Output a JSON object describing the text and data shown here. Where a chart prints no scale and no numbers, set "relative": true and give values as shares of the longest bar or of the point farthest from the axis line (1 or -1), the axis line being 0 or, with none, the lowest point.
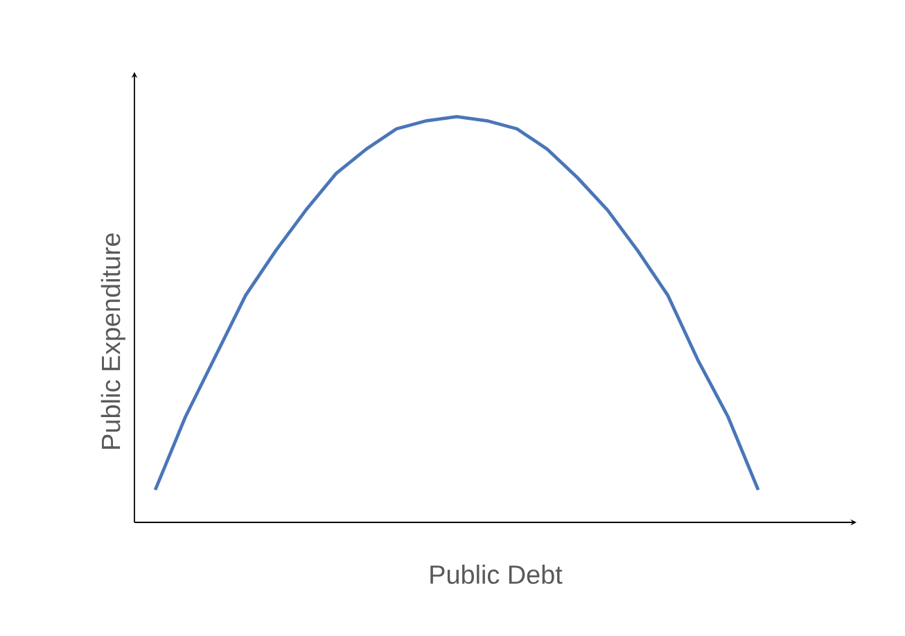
{
  "chart_data": {
    "type": "line",
    "relative": true,
    "xlabel": "Public Debt",
    "ylabel": "Public Expenditure",
    "categories": [
      null,
      null,
      null,
      null,
      null,
      null,
      null,
      null,
      null,
      null,
      null,
      null,
      null,
      null,
      null,
      null,
      null,
      null,
      null,
      null,
      null
    ],
    "series": [
      {
        "color": "#4a76b8",
        "values": [
          0.08,
          0.26,
          0.41,
          0.56,
          0.67,
          0.77,
          0.86,
          0.92,
          0.97,
          0.99,
          1,
          0.99,
          0.97,
          0.92,
          0.85,
          0.77,
          0.67,
          0.56,
          0.4,
          0.26,
          0.08
        ]
      }
    ],
    "marker": "none",
    "line_style": "solid"
  }
}
